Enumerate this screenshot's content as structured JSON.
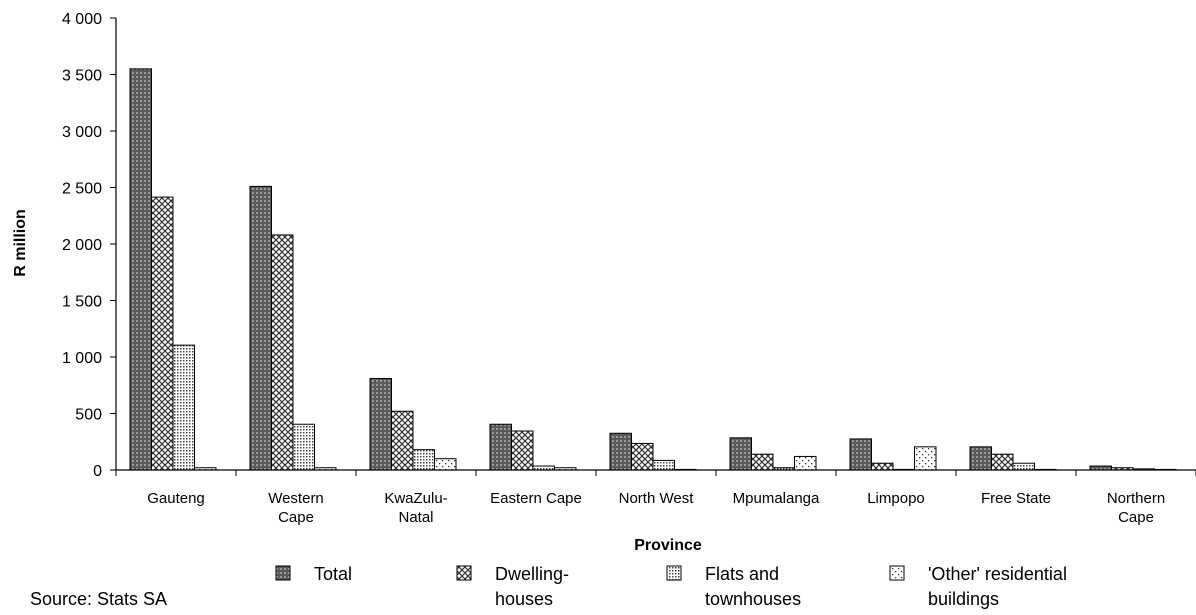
{
  "chart_data": {
    "type": "bar",
    "xlabel": "Province",
    "ylabel": "R million",
    "ylim": [
      0,
      4000
    ],
    "yticks": [
      0,
      500,
      1000,
      1500,
      2000,
      2500,
      3000,
      3500,
      4000
    ],
    "ytick_labels": [
      "0",
      "500",
      "1 000",
      "1 500",
      "2 000",
      "2 500",
      "3 000",
      "3 500",
      "4 000"
    ],
    "categories": [
      "Gauteng",
      "Western\nCape",
      "KwaZulu-\nNatal",
      "Eastern Cape",
      "North West",
      "Mpumalanga",
      "Limpopo",
      "Free State",
      "Northern\nCape"
    ],
    "series": [
      {
        "name": "Total",
        "pattern": "dense",
        "values": [
          3550,
          2510,
          810,
          405,
          325,
          285,
          275,
          205,
          35
        ]
      },
      {
        "name": "Dwelling-\nhouses",
        "pattern": "cross",
        "values": [
          2415,
          2080,
          520,
          345,
          235,
          140,
          60,
          140,
          20
        ]
      },
      {
        "name": "Flats and\ntownhouses",
        "pattern": "fine",
        "values": [
          1105,
          405,
          180,
          35,
          85,
          20,
          5,
          60,
          10
        ]
      },
      {
        "name": "'Other' residential\nbuildings",
        "pattern": "sparse",
        "values": [
          20,
          20,
          100,
          20,
          5,
          120,
          205,
          5,
          5
        ]
      }
    ],
    "grid": false,
    "legend_position": "bottom"
  },
  "source": "Source: Stats SA"
}
